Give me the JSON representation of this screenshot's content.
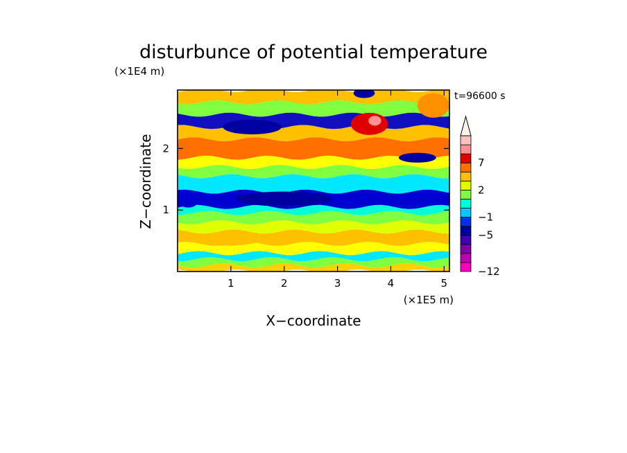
{
  "chart_data": {
    "type": "heatmap",
    "title": "disturbunce of potential temperature",
    "xlabel": "X−coordinate",
    "ylabel": "Z−coordinate",
    "x_unit_label": "(×1E5 m)",
    "y_unit_label": "(×1E4 m)",
    "time_label": "t=96600 s",
    "xlim": [
      0,
      5.1
    ],
    "ylim": [
      0,
      2.95
    ],
    "x_ticks": [
      1,
      2,
      3,
      4,
      5
    ],
    "y_ticks": [
      1,
      2
    ],
    "x_tick_labels": [
      "1",
      "2",
      "3",
      "4",
      "5"
    ],
    "y_tick_labels": [
      "1",
      "2"
    ],
    "colorbar": {
      "levels": [
        -12,
        -10,
        -8,
        -6,
        -5,
        -4,
        -1,
        0,
        1,
        2,
        3,
        5,
        7,
        9,
        11
      ],
      "tick_labels": [
        "7",
        "2",
        "−1",
        "−5",
        "−12"
      ],
      "tick_values": [
        7,
        2,
        -1,
        -5,
        -12
      ],
      "colors": [
        "#ff00c0",
        "#c000b0",
        "#8000a8",
        "#4000b0",
        "#0000a0",
        "#0030e8",
        "#00c8ff",
        "#00ffd8",
        "#80ff40",
        "#e0ff00",
        "#ffc000",
        "#ff7000",
        "#e00000",
        "#ff9090",
        "#ffc0c0"
      ],
      "extend": "max"
    },
    "bands": [
      {
        "z": [
          0.0,
          0.1
        ],
        "value": 1.5,
        "color": "#ffd000"
      },
      {
        "z": [
          0.1,
          0.2
        ],
        "value": -0.5,
        "color": "#80ff40"
      },
      {
        "z": [
          0.2,
          0.3
        ],
        "value": -1,
        "color": "#00e8ff"
      },
      {
        "z": [
          0.3,
          0.45
        ],
        "value": 2,
        "color": "#ffff00"
      },
      {
        "z": [
          0.45,
          0.65
        ],
        "value": 3,
        "color": "#ffc000"
      },
      {
        "z": [
          0.65,
          0.8
        ],
        "value": 1,
        "color": "#e0ff00"
      },
      {
        "z": [
          0.8,
          0.95
        ],
        "value": 0,
        "color": "#80ff40"
      },
      {
        "z": [
          0.95,
          1.05
        ],
        "value": -1,
        "color": "#00ffd8"
      },
      {
        "z": [
          1.05,
          1.3
        ],
        "value": -3,
        "color": "#0000d0"
      },
      {
        "z": [
          1.3,
          1.55
        ],
        "value": -1,
        "color": "#00e8ff"
      },
      {
        "z": [
          1.55,
          1.7
        ],
        "value": 0,
        "color": "#80ff40"
      },
      {
        "z": [
          1.7,
          1.85
        ],
        "value": 2,
        "color": "#ffff00"
      },
      {
        "z": [
          1.85,
          2.15
        ],
        "value": 5,
        "color": "#ff7000"
      },
      {
        "z": [
          2.15,
          2.35
        ],
        "value": 3,
        "color": "#ffc000"
      },
      {
        "z": [
          2.35,
          2.55
        ],
        "value": -4,
        "color": "#1010c0"
      },
      {
        "z": [
          2.55,
          2.75
        ],
        "value": 1,
        "color": "#80ff40"
      },
      {
        "z": [
          2.75,
          2.95
        ],
        "value": 3,
        "color": "#ffc000"
      }
    ],
    "features": [
      {
        "x": 2.0,
        "z": 1.18,
        "rx": 0.9,
        "rz": 0.12,
        "value": -5,
        "color": "#0000a0"
      },
      {
        "x": 1.4,
        "z": 2.35,
        "rx": 0.55,
        "rz": 0.12,
        "value": -5,
        "color": "#0000a0"
      },
      {
        "x": 4.5,
        "z": 1.85,
        "rx": 0.35,
        "rz": 0.08,
        "value": -5,
        "color": "#0000a0"
      },
      {
        "x": 3.6,
        "z": 2.4,
        "rx": 0.35,
        "rz": 0.18,
        "value": 7,
        "color": "#e00000"
      },
      {
        "x": 3.7,
        "z": 2.45,
        "rx": 0.12,
        "rz": 0.08,
        "value": 9,
        "color": "#ff9090"
      },
      {
        "x": 4.8,
        "z": 2.7,
        "rx": 0.3,
        "rz": 0.2,
        "value": 4,
        "color": "#ff9000"
      },
      {
        "x": 1.1,
        "z": 2.0,
        "rx": 0.35,
        "rz": 0.1,
        "value": 5,
        "color": "#ff7000"
      },
      {
        "x": 0.9,
        "z": 0.5,
        "rx": 0.6,
        "rz": 0.08,
        "value": 3,
        "color": "#ffc000"
      },
      {
        "x": 2.9,
        "z": 0.55,
        "rx": 0.5,
        "rz": 0.07,
        "value": 3,
        "color": "#ffc000"
      },
      {
        "x": 0.2,
        "z": 1.1,
        "rx": 0.15,
        "rz": 0.06,
        "value": -3,
        "color": "#0000d0"
      },
      {
        "x": 3.5,
        "z": 2.9,
        "rx": 0.2,
        "rz": 0.08,
        "value": -4,
        "color": "#0000a0"
      }
    ]
  }
}
